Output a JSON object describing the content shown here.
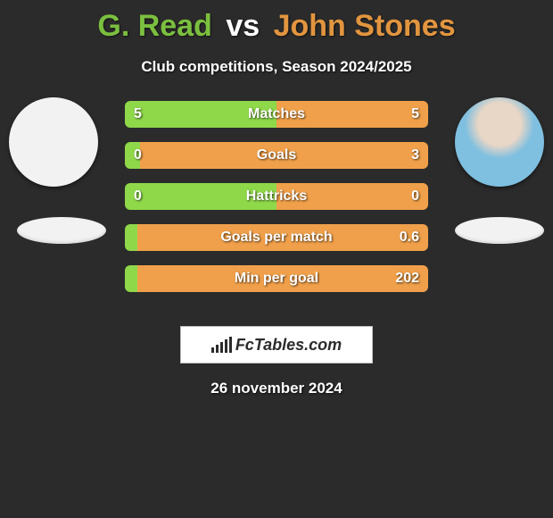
{
  "colors": {
    "background": "#2b2b2b",
    "player1_accent": "#7bbf3f",
    "player2_accent": "#e2953f",
    "player1_bar": "#8fd84a",
    "player2_bar": "#f0a04a",
    "text": "#ffffff"
  },
  "title": {
    "player1": "G. Read",
    "vs": "vs",
    "player2": "John Stones"
  },
  "subtitle": "Club competitions, Season 2024/2025",
  "stats": [
    {
      "label": "Matches",
      "left_value": "5",
      "right_value": "5",
      "left_pct": 50,
      "right_pct": 50
    },
    {
      "label": "Goals",
      "left_value": "0",
      "right_value": "3",
      "left_pct": 5,
      "right_pct": 95
    },
    {
      "label": "Hattricks",
      "left_value": "0",
      "right_value": "0",
      "left_pct": 50,
      "right_pct": 50
    },
    {
      "label": "Goals per match",
      "left_value": "",
      "right_value": "0.6",
      "left_pct": 4,
      "right_pct": 96
    },
    {
      "label": "Min per goal",
      "left_value": "",
      "right_value": "202",
      "left_pct": 4,
      "right_pct": 96
    }
  ],
  "branding": {
    "logo_text": "FcTables.com"
  },
  "date": "26 november 2024",
  "bars_icon_heights": [
    6,
    9,
    12,
    15,
    18
  ]
}
